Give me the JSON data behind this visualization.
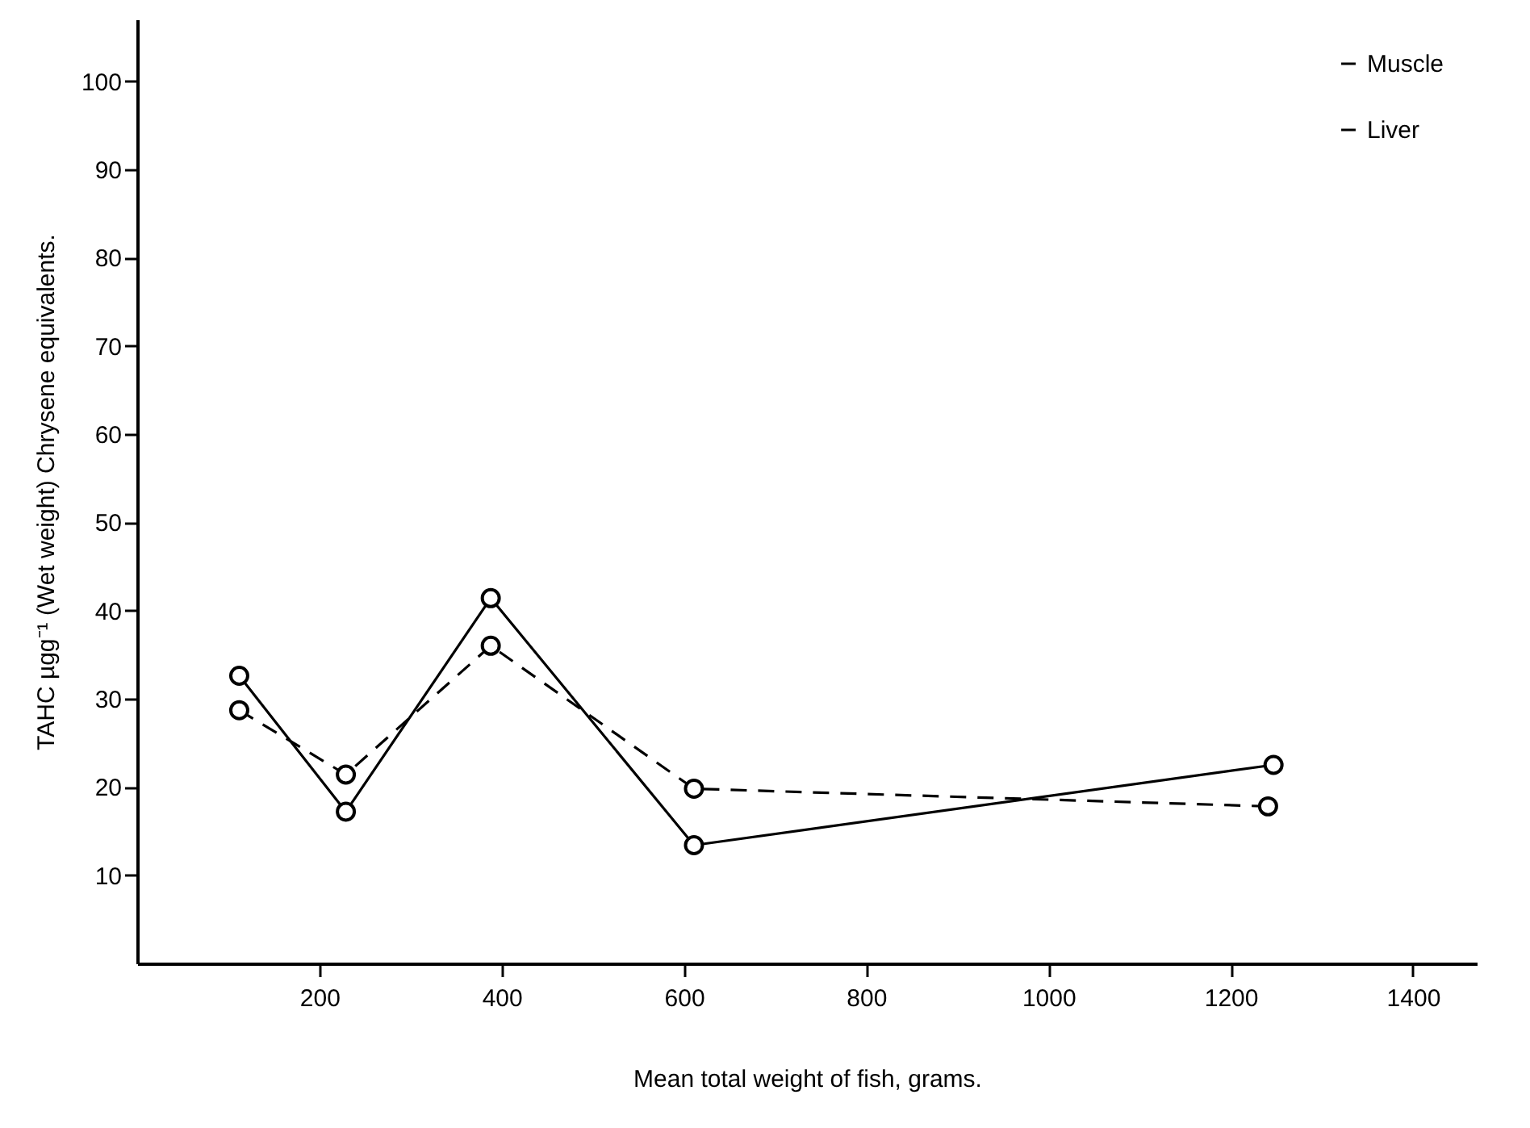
{
  "chart_data": {
    "type": "line",
    "xlabel": "Mean total weight of fish, grams.",
    "ylabel": "TAHC µgg⁻¹ (Wet weight) Chrysene equivalents.",
    "xlim": [
      0,
      1470
    ],
    "xticks": [
      200,
      400,
      600,
      800,
      1000,
      1200,
      1400
    ],
    "ylim": [
      0,
      107
    ],
    "yticks": [
      10,
      20,
      30,
      40,
      50,
      60,
      70,
      80,
      90,
      100
    ],
    "grid": false,
    "legend": "top right",
    "marker": "circle",
    "series": [
      {
        "name": "Muscle",
        "color": "#000000",
        "line_style": "solid",
        "x": [
          112,
          229,
          388,
          611,
          1247
        ],
        "values": [
          32.6,
          17.2,
          41.4,
          13.4,
          22.5
        ]
      },
      {
        "name": "Liver",
        "color": "#000000",
        "line_style": "dashed",
        "x": [
          112,
          229,
          388,
          611,
          1241
        ],
        "values": [
          28.7,
          21.4,
          36.0,
          19.8,
          17.8
        ]
      }
    ]
  }
}
